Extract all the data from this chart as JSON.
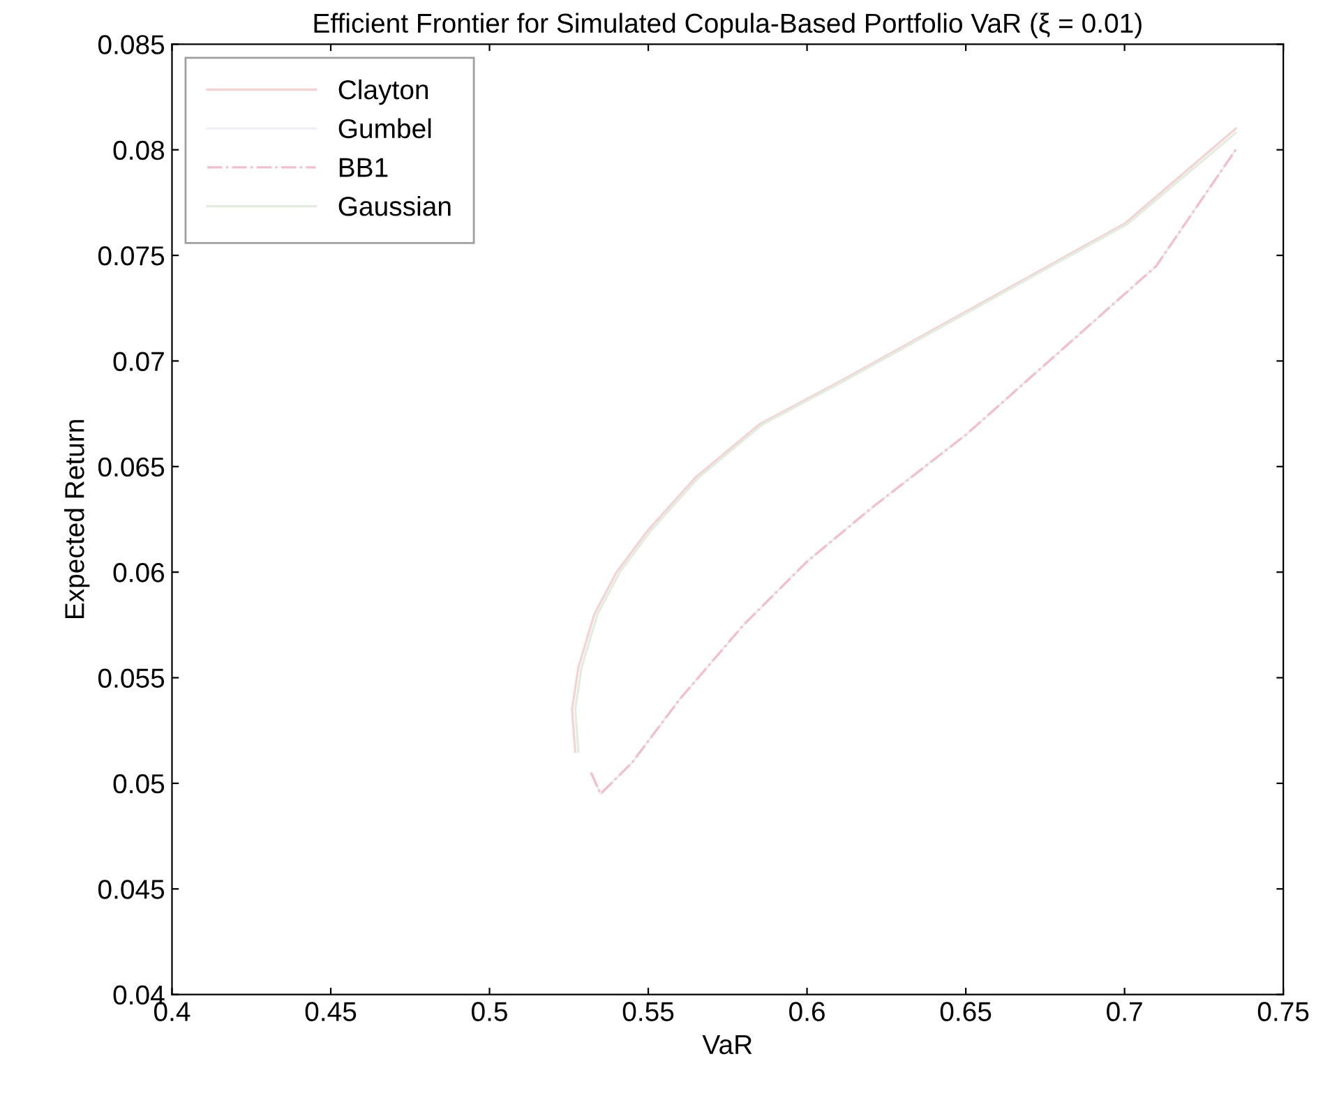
{
  "chart_data": {
    "type": "line",
    "title": "Efficient Frontier for Simulated Copula-Based Portfolio VaR (ξ = 0.01)",
    "xlabel": "VaR",
    "ylabel": "Expected Return",
    "xlim": [
      0.4,
      0.75
    ],
    "xticks": [
      0.4,
      0.45,
      0.5,
      0.55,
      0.6,
      0.65,
      0.7,
      0.75
    ],
    "ylim": [
      0.04,
      0.085
    ],
    "yticks": [
      0.04,
      0.045,
      0.05,
      0.055,
      0.06,
      0.065,
      0.07,
      0.075,
      0.08,
      0.085
    ],
    "grid": false,
    "legend": "top left",
    "marker": "none",
    "series": [
      {
        "name": "Clayton",
        "color": "#f2d4d4",
        "line_style": "solid",
        "x": [
          0.527,
          0.526,
          0.528,
          0.533,
          0.54,
          0.55,
          0.565,
          0.585,
          0.61,
          0.64,
          0.67,
          0.7,
          0.735
        ],
        "values": [
          0.0515,
          0.0535,
          0.0555,
          0.058,
          0.06,
          0.062,
          0.0645,
          0.067,
          0.069,
          0.0715,
          0.074,
          0.0765,
          0.081
        ]
      },
      {
        "name": "Gumbel",
        "color": "#eeeef4",
        "line_style": "solid",
        "x": [
          0.532,
          0.535,
          0.545,
          0.56,
          0.58,
          0.6,
          0.62,
          0.65,
          0.68,
          0.71,
          0.735
        ],
        "values": [
          0.0505,
          0.0495,
          0.051,
          0.054,
          0.0575,
          0.0605,
          0.063,
          0.0665,
          0.0705,
          0.0745,
          0.08
        ]
      },
      {
        "name": "BB1",
        "color": "#f0c0cc",
        "line_style": "dashdot",
        "x": [
          0.532,
          0.535,
          0.545,
          0.56,
          0.58,
          0.6,
          0.62,
          0.65,
          0.68,
          0.71,
          0.735
        ],
        "values": [
          0.0505,
          0.0495,
          0.051,
          0.054,
          0.0575,
          0.0605,
          0.063,
          0.0665,
          0.0705,
          0.0745,
          0.08
        ]
      },
      {
        "name": "Gaussian",
        "color": "#e4ece0",
        "line_style": "solid",
        "x": [
          0.528,
          0.527,
          0.529,
          0.534,
          0.541,
          0.551,
          0.566,
          0.586,
          0.611,
          0.641,
          0.671,
          0.701,
          0.735
        ],
        "values": [
          0.0515,
          0.0535,
          0.0555,
          0.058,
          0.06,
          0.062,
          0.0645,
          0.067,
          0.069,
          0.0715,
          0.074,
          0.0765,
          0.0808
        ]
      }
    ]
  }
}
